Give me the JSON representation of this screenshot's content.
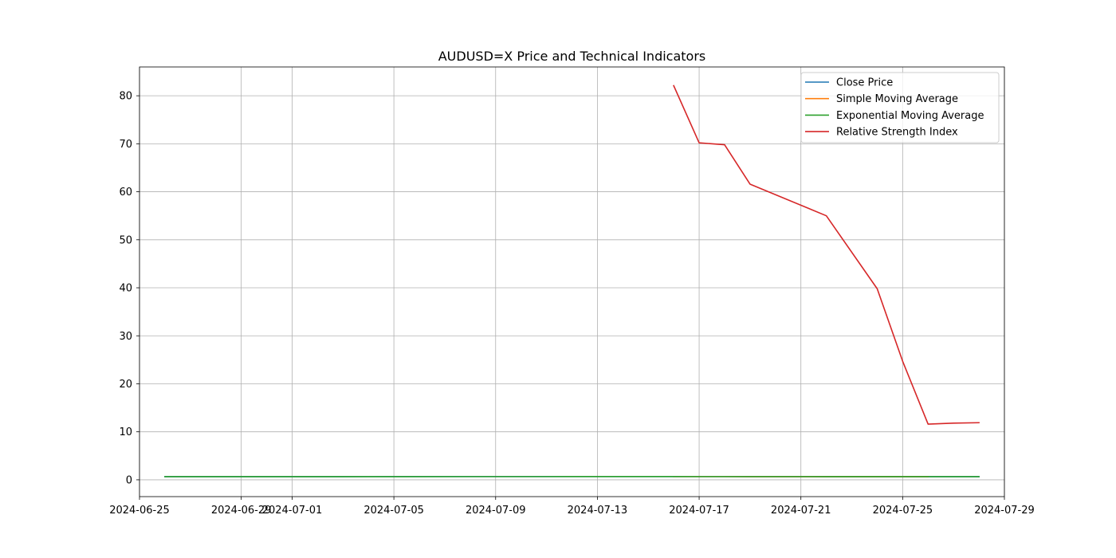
{
  "chart_data": {
    "type": "line",
    "title": "AUDUSD=X Price and Technical Indicators",
    "xlabel": "",
    "ylabel": "",
    "x_type": "date",
    "xlim": [
      "2024-06-25",
      "2024-07-29"
    ],
    "ylim": [
      -3.5,
      86
    ],
    "x_ticks": [
      "2024-06-25",
      "2024-06-29",
      "2024-07-01",
      "2024-07-05",
      "2024-07-09",
      "2024-07-13",
      "2024-07-17",
      "2024-07-21",
      "2024-07-25",
      "2024-07-29"
    ],
    "y_ticks": [
      0,
      10,
      20,
      30,
      40,
      50,
      60,
      70,
      80
    ],
    "grid": true,
    "legend_position": "upper-right",
    "series": [
      {
        "name": "Close Price",
        "color": "#1f77b4",
        "points": [
          [
            "2024-06-26",
            0.665
          ],
          [
            "2024-06-27",
            0.666
          ],
          [
            "2024-06-28",
            0.667
          ],
          [
            "2024-07-01",
            0.667
          ],
          [
            "2024-07-02",
            0.666
          ],
          [
            "2024-07-03",
            0.67
          ],
          [
            "2024-07-04",
            0.672
          ],
          [
            "2024-07-05",
            0.674
          ],
          [
            "2024-07-08",
            0.674
          ],
          [
            "2024-07-09",
            0.675
          ],
          [
            "2024-07-10",
            0.674
          ],
          [
            "2024-07-11",
            0.676
          ],
          [
            "2024-07-12",
            0.677
          ],
          [
            "2024-07-15",
            0.676
          ],
          [
            "2024-07-16",
            0.673
          ],
          [
            "2024-07-17",
            0.671
          ],
          [
            "2024-07-18",
            0.672
          ],
          [
            "2024-07-19",
            0.67
          ],
          [
            "2024-07-22",
            0.665
          ],
          [
            "2024-07-23",
            0.663
          ],
          [
            "2024-07-24",
            0.66
          ],
          [
            "2024-07-25",
            0.658
          ],
          [
            "2024-07-26",
            0.656
          ],
          [
            "2024-07-28",
            0.655
          ]
        ]
      },
      {
        "name": "Simple Moving Average",
        "color": "#ff7f0e",
        "points": [
          [
            "2024-07-16",
            0.673
          ],
          [
            "2024-07-17",
            0.672
          ],
          [
            "2024-07-18",
            0.671
          ],
          [
            "2024-07-19",
            0.67
          ],
          [
            "2024-07-22",
            0.668
          ],
          [
            "2024-07-23",
            0.666
          ],
          [
            "2024-07-24",
            0.663
          ],
          [
            "2024-07-25",
            0.661
          ],
          [
            "2024-07-26",
            0.659
          ]
        ]
      },
      {
        "name": "Exponential Moving Average",
        "color": "#2ca02c",
        "points": [
          [
            "2024-06-26",
            0.665
          ],
          [
            "2024-06-27",
            0.666
          ],
          [
            "2024-06-28",
            0.666
          ],
          [
            "2024-07-01",
            0.667
          ],
          [
            "2024-07-02",
            0.667
          ],
          [
            "2024-07-03",
            0.668
          ],
          [
            "2024-07-04",
            0.669
          ],
          [
            "2024-07-05",
            0.67
          ],
          [
            "2024-07-08",
            0.671
          ],
          [
            "2024-07-09",
            0.672
          ],
          [
            "2024-07-10",
            0.672
          ],
          [
            "2024-07-11",
            0.673
          ],
          [
            "2024-07-12",
            0.674
          ],
          [
            "2024-07-15",
            0.674
          ],
          [
            "2024-07-16",
            0.674
          ],
          [
            "2024-07-17",
            0.673
          ],
          [
            "2024-07-18",
            0.673
          ],
          [
            "2024-07-19",
            0.672
          ],
          [
            "2024-07-22",
            0.67
          ],
          [
            "2024-07-23",
            0.668
          ],
          [
            "2024-07-24",
            0.666
          ],
          [
            "2024-07-25",
            0.664
          ],
          [
            "2024-07-26",
            0.662
          ],
          [
            "2024-07-28",
            0.66
          ]
        ]
      },
      {
        "name": "Relative Strength Index",
        "color": "#d62728",
        "points": [
          [
            "2024-07-16",
            82.1
          ],
          [
            "2024-07-17",
            70.2
          ],
          [
            "2024-07-18",
            69.8
          ],
          [
            "2024-07-19",
            61.6
          ],
          [
            "2024-07-22",
            55.0
          ],
          [
            "2024-07-24",
            39.8
          ],
          [
            "2024-07-25",
            24.7
          ],
          [
            "2024-07-26",
            11.6
          ],
          [
            "2024-07-27",
            11.8
          ],
          [
            "2024-07-28",
            11.9
          ]
        ]
      }
    ]
  }
}
